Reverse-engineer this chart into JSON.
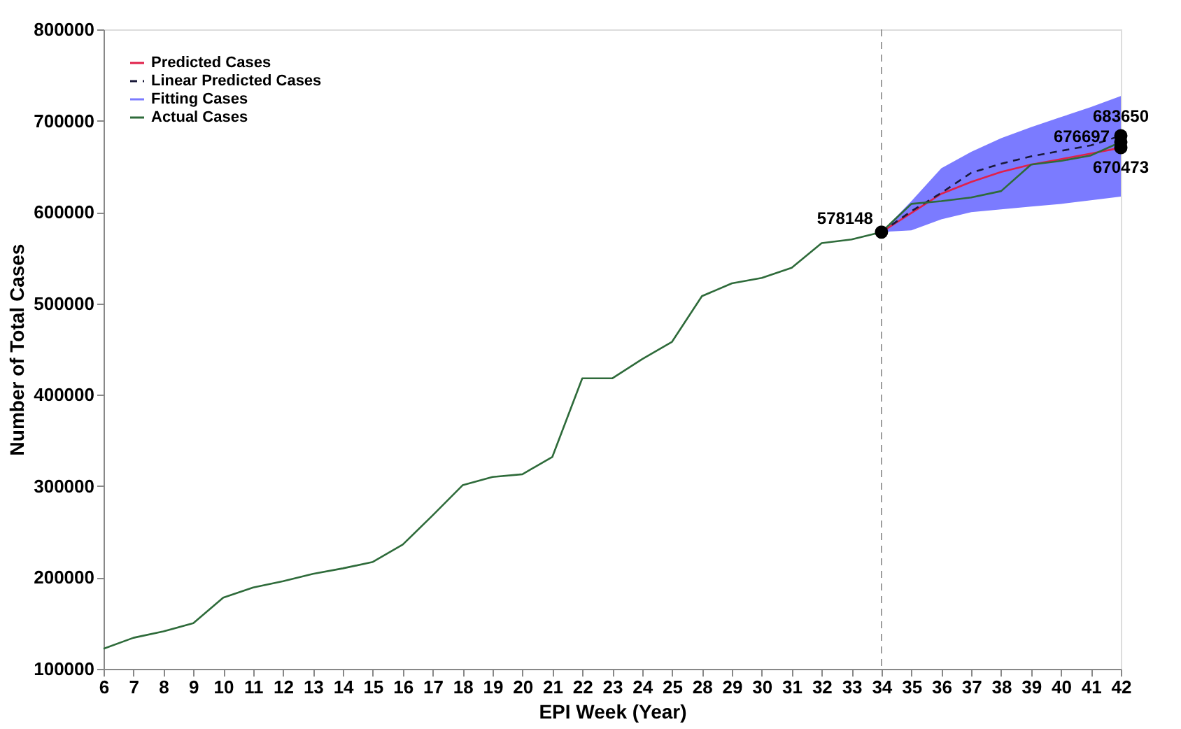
{
  "chart_data": {
    "type": "line",
    "xlabel": "EPI Week (Year)",
    "ylabel": "Number of Total Cases",
    "categories": [
      "6",
      "7",
      "8",
      "9",
      "10",
      "11",
      "12",
      "13",
      "14",
      "15",
      "16",
      "17",
      "18",
      "19",
      "20",
      "21",
      "22",
      "23",
      "24",
      "25",
      "28",
      "29",
      "30",
      "31",
      "32",
      "33",
      "34",
      "35",
      "36",
      "37",
      "38",
      "39",
      "40",
      "41",
      "42"
    ],
    "series": [
      {
        "name": "Predicted Cases",
        "color": "#e0204a",
        "line_style": "solid",
        "values": [
          null,
          null,
          null,
          null,
          null,
          null,
          null,
          null,
          null,
          null,
          null,
          null,
          null,
          null,
          null,
          null,
          null,
          null,
          null,
          null,
          null,
          null,
          null,
          null,
          null,
          null,
          578148,
          599000,
          620000,
          633000,
          644000,
          652000,
          658000,
          664000,
          670473
        ]
      },
      {
        "name": "Linear Predicted Cases",
        "color": "#1a1a3a",
        "line_style": "dashed",
        "values": [
          null,
          null,
          null,
          null,
          null,
          null,
          null,
          null,
          null,
          null,
          null,
          null,
          null,
          null,
          null,
          null,
          null,
          null,
          null,
          null,
          null,
          null,
          null,
          null,
          null,
          null,
          578148,
          601000,
          621000,
          643000,
          653000,
          661000,
          667000,
          673000,
          683650
        ]
      },
      {
        "name": "Fitting Cases",
        "color": "#7b7bff",
        "type": "area",
        "lower": [
          null,
          null,
          null,
          null,
          null,
          null,
          null,
          null,
          null,
          null,
          null,
          null,
          null,
          null,
          null,
          null,
          null,
          null,
          null,
          null,
          null,
          null,
          null,
          null,
          null,
          null,
          578148,
          580000,
          592000,
          600000,
          603000,
          606000,
          609000,
          613000,
          617000
        ],
        "upper": [
          null,
          null,
          null,
          null,
          null,
          null,
          null,
          null,
          null,
          null,
          null,
          null,
          null,
          null,
          null,
          null,
          null,
          null,
          null,
          null,
          null,
          null,
          null,
          null,
          null,
          null,
          578148,
          612000,
          648000,
          666000,
          681000,
          693000,
          704000,
          715000,
          727000
        ],
        "values": [
          null,
          null,
          null,
          null,
          null,
          null,
          null,
          null,
          null,
          null,
          null,
          null,
          null,
          null,
          null,
          null,
          null,
          null,
          null,
          null,
          null,
          null,
          null,
          null,
          null,
          null,
          null,
          null,
          null,
          null,
          null,
          null,
          null,
          null,
          null
        ]
      },
      {
        "name": "Actual Cases",
        "color": "#2e6b3a",
        "line_style": "solid",
        "values": [
          122000,
          134000,
          141000,
          150000,
          178000,
          189000,
          196000,
          204000,
          210000,
          217000,
          236000,
          268000,
          301000,
          310000,
          313000,
          332000,
          418000,
          418000,
          439000,
          458000,
          508000,
          522000,
          528000,
          539000,
          566000,
          570000,
          578148,
          609000,
          612000,
          616000,
          623000,
          652000,
          656000,
          662000,
          676697
        ]
      }
    ],
    "annotations": [
      {
        "text": "578148",
        "x": "34",
        "y": 578148
      },
      {
        "text": "683650",
        "x": "42",
        "y": 683650
      },
      {
        "text": "676697",
        "x": "42",
        "y": 676697
      },
      {
        "text": "670473",
        "x": "42",
        "y": 670473
      }
    ],
    "ref_lines": [
      {
        "axis": "x",
        "value": "34",
        "color": "#888888",
        "line_style": "dashed"
      }
    ],
    "ylim": [
      100000,
      800000
    ],
    "yticks": [
      100000,
      200000,
      300000,
      400000,
      500000,
      600000,
      700000,
      800000
    ],
    "grid": false,
    "legend": "top left"
  }
}
